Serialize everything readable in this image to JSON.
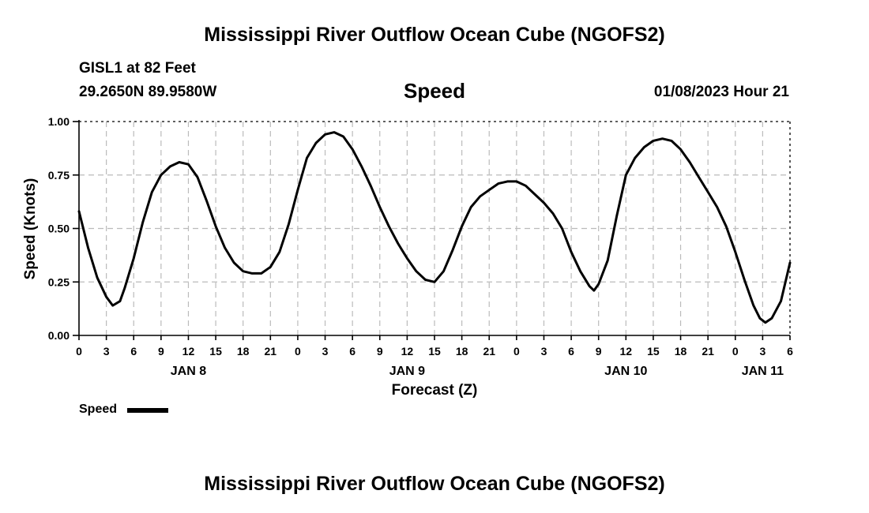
{
  "header": {
    "title": "Mississippi River Outflow Ocean Cube (NGOFS2)",
    "station": "GISL1 at 82 Feet",
    "coords": "29.2650N  89.9580W",
    "datetime": "01/08/2023 Hour 21"
  },
  "footer": {
    "title": "Mississippi River Outflow Ocean Cube (NGOFS2)"
  },
  "chart_data": {
    "type": "line",
    "title": "Speed",
    "xlabel": "Forecast (Z)",
    "ylabel": "Speed (Knots)",
    "xlim": [
      0,
      78
    ],
    "ylim": [
      0,
      1
    ],
    "yticks": [
      0,
      0.25,
      0.5,
      0.75,
      1.0
    ],
    "ytick_labels": [
      "0.00",
      "0.25",
      "0.50",
      "0.75",
      "1.00"
    ],
    "xticks": [
      0,
      3,
      6,
      9,
      12,
      15,
      18,
      21,
      24,
      27,
      30,
      33,
      36,
      39,
      42,
      45,
      48,
      51,
      54,
      57,
      60,
      63,
      66,
      69,
      72,
      75,
      78
    ],
    "xtick_labels": [
      "0",
      "3",
      "6",
      "9",
      "12",
      "15",
      "18",
      "21",
      "0",
      "3",
      "6",
      "9",
      "12",
      "15",
      "18",
      "21",
      "0",
      "3",
      "6",
      "9",
      "12",
      "15",
      "18",
      "21",
      "0",
      "3",
      "6"
    ],
    "day_labels": [
      {
        "x": 12,
        "label": "JAN 8"
      },
      {
        "x": 36,
        "label": "JAN 9"
      },
      {
        "x": 60,
        "label": "JAN 10"
      },
      {
        "x": 75,
        "label": "JAN 11"
      }
    ],
    "grid": true,
    "legend": "bottom-left",
    "series": [
      {
        "name": "Speed",
        "x": [
          0,
          1,
          2,
          3,
          3.7,
          4.5,
          5,
          6,
          7,
          8,
          9,
          10,
          11,
          12,
          13,
          14,
          15,
          16,
          17,
          18,
          19,
          20,
          21,
          22,
          23,
          24,
          25,
          26,
          27,
          28,
          29,
          30,
          31,
          32,
          33,
          34,
          35,
          36,
          37,
          38,
          39,
          40,
          41,
          42,
          43,
          44,
          45,
          46,
          47,
          48,
          49,
          50,
          51,
          52,
          53,
          54,
          55,
          56,
          56.5,
          57,
          58,
          59,
          60,
          61,
          62,
          63,
          64,
          65,
          66,
          67,
          68,
          69,
          70,
          71,
          72,
          73,
          74,
          74.7,
          75.3,
          76,
          77,
          78
        ],
        "values": [
          0.58,
          0.41,
          0.27,
          0.18,
          0.14,
          0.16,
          0.22,
          0.36,
          0.53,
          0.67,
          0.75,
          0.79,
          0.81,
          0.8,
          0.74,
          0.63,
          0.51,
          0.41,
          0.34,
          0.3,
          0.29,
          0.29,
          0.32,
          0.39,
          0.52,
          0.68,
          0.83,
          0.9,
          0.94,
          0.95,
          0.93,
          0.87,
          0.79,
          0.7,
          0.6,
          0.51,
          0.43,
          0.36,
          0.3,
          0.26,
          0.25,
          0.3,
          0.4,
          0.51,
          0.6,
          0.65,
          0.68,
          0.71,
          0.72,
          0.72,
          0.7,
          0.66,
          0.62,
          0.57,
          0.5,
          0.39,
          0.3,
          0.23,
          0.21,
          0.24,
          0.35,
          0.56,
          0.75,
          0.83,
          0.88,
          0.91,
          0.92,
          0.91,
          0.87,
          0.81,
          0.74,
          0.67,
          0.6,
          0.51,
          0.39,
          0.26,
          0.14,
          0.08,
          0.06,
          0.08,
          0.16,
          0.34
        ]
      }
    ]
  }
}
